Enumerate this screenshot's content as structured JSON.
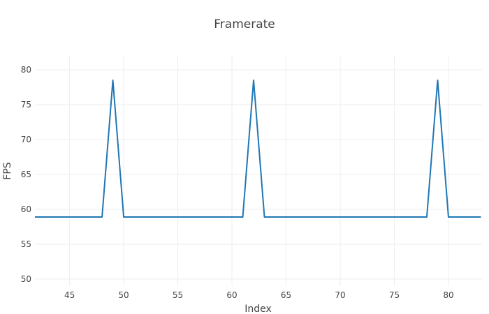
{
  "chart_data": {
    "type": "line",
    "title": "Framerate",
    "xlabel": "Index",
    "ylabel": "FPS",
    "xlim": [
      41.8,
      83.1
    ],
    "ylim": [
      49,
      82
    ],
    "x_ticks": [
      45,
      50,
      55,
      60,
      65,
      70,
      75,
      80
    ],
    "y_ticks": [
      50,
      55,
      60,
      65,
      70,
      75,
      80
    ],
    "grid": true,
    "legend": "none",
    "series": [
      {
        "color": "#1f77b4",
        "x": [
          41,
          42,
          43,
          44,
          45,
          46,
          47,
          48,
          49,
          50,
          51,
          52,
          53,
          54,
          55,
          56,
          57,
          58,
          59,
          60,
          61,
          62,
          63,
          64,
          65,
          66,
          67,
          68,
          69,
          70,
          71,
          72,
          73,
          74,
          75,
          76,
          77,
          78,
          79,
          80,
          81,
          82,
          83
        ],
        "y": [
          58.9,
          58.9,
          58.9,
          58.9,
          58.9,
          58.9,
          58.9,
          58.9,
          78.5,
          58.9,
          58.9,
          58.9,
          58.9,
          58.9,
          58.9,
          58.9,
          58.9,
          58.9,
          58.9,
          58.9,
          58.9,
          78.5,
          58.9,
          58.9,
          58.9,
          58.9,
          58.9,
          58.9,
          58.9,
          58.9,
          58.9,
          58.9,
          58.9,
          58.9,
          58.9,
          58.9,
          58.9,
          58.9,
          78.5,
          58.9,
          58.9,
          58.9,
          58.9
        ]
      }
    ]
  }
}
